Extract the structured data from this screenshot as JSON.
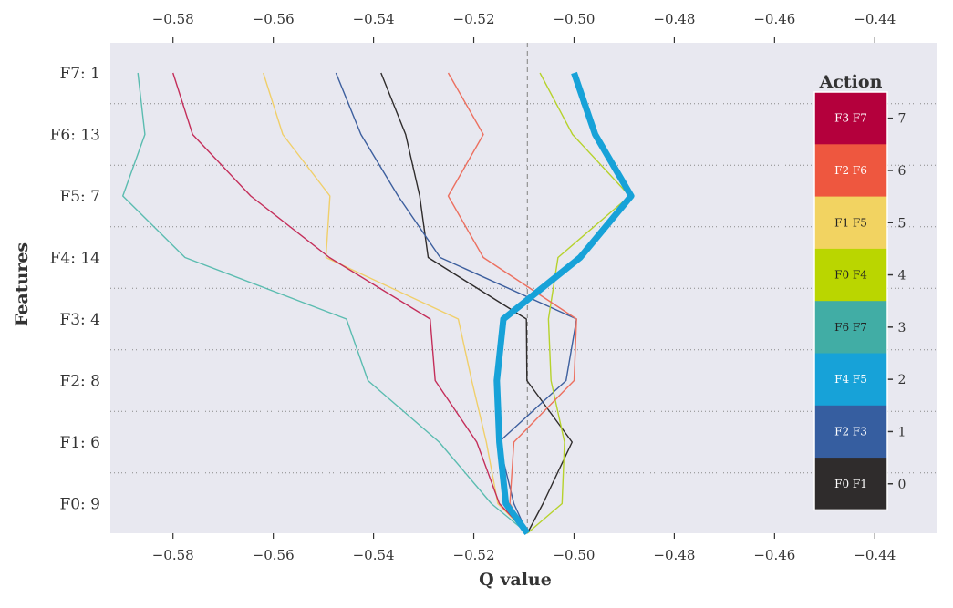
{
  "chart_data": {
    "type": "line",
    "xlabel": "Q value",
    "ylabel": "Features",
    "xlim": [
      -0.5925,
      -0.4275
    ],
    "x_ticks": [
      -0.58,
      -0.56,
      -0.54,
      -0.52,
      -0.5,
      -0.48,
      -0.46,
      -0.44
    ],
    "x_tick_labels": [
      "−0.58",
      "−0.56",
      "−0.54",
      "−0.52",
      "−0.50",
      "−0.48",
      "−0.46",
      "−0.44"
    ],
    "y_levels": [
      "base",
      "F0: 9",
      "F1: 6",
      "F2: 8",
      "F3: 4",
      "F4: 14",
      "F5: 7",
      "F6: 13",
      "F7: 1"
    ],
    "y_tick_labels": [
      "F0: 9",
      "F1: 6",
      "F2: 8",
      "F3: 4",
      "F4: 14",
      "F5: 7",
      "F6: 13",
      "F7: 1"
    ],
    "base_value": -0.5093,
    "series": [
      {
        "color": "#2f2c2c",
        "values": [
          -0.5093,
          -0.5062,
          -0.5004,
          -0.5094,
          -0.5095,
          -0.5291,
          -0.5308,
          -0.5336,
          -0.5385
        ],
        "highlight": false
      },
      {
        "color": "#3d5f9e",
        "values": [
          -0.5093,
          -0.512,
          -0.515,
          -0.5016,
          -0.4995,
          -0.5267,
          -0.5351,
          -0.5425,
          -0.5475
        ],
        "highlight": false
      },
      {
        "color": "#17a2d8",
        "values": [
          -0.5093,
          -0.5136,
          -0.5149,
          -0.5154,
          -0.5141,
          -0.4988,
          -0.4886,
          -0.4958,
          -0.5
        ],
        "highlight": true
      },
      {
        "color": "#5bbcb0",
        "values": [
          -0.5093,
          -0.5165,
          -0.5269,
          -0.5411,
          -0.5454,
          -0.5776,
          -0.59,
          -0.5856,
          -0.587
        ],
        "highlight": false
      },
      {
        "color": "#b6d22c",
        "values": [
          -0.5093,
          -0.5024,
          -0.5019,
          -0.5046,
          -0.5051,
          -0.5032,
          -0.4889,
          -0.5003,
          -0.5068
        ],
        "highlight": false
      },
      {
        "color": "#f0cf6a",
        "values": [
          -0.5093,
          -0.5152,
          -0.5175,
          -0.5204,
          -0.5231,
          -0.5495,
          -0.5487,
          -0.5581,
          -0.562
        ],
        "highlight": false
      },
      {
        "color": "#ec7060",
        "values": [
          -0.5093,
          -0.5128,
          -0.512,
          -0.5,
          -0.4995,
          -0.5181,
          -0.5251,
          -0.5181,
          -0.5251
        ],
        "highlight": false
      },
      {
        "color": "#c42e5a",
        "values": [
          -0.5093,
          -0.5149,
          -0.5194,
          -0.5277,
          -0.5287,
          -0.5488,
          -0.5645,
          -0.5761,
          -0.58
        ],
        "highlight": false
      }
    ],
    "legend": {
      "title": "Action",
      "position": "right",
      "segments": [
        {
          "label": "F3 F7",
          "tick": "7",
          "color": "#b4003c",
          "text_color": "#ffffff"
        },
        {
          "label": "F2 F6",
          "tick": "6",
          "color": "#ee573f",
          "text_color": "#ffffff"
        },
        {
          "label": "F1 F5",
          "tick": "5",
          "color": "#f2d361",
          "text_color": "#222222"
        },
        {
          "label": "F0 F4",
          "tick": "4",
          "color": "#bad600",
          "text_color": "#222222"
        },
        {
          "label": "F6 F7",
          "tick": "3",
          "color": "#41ada5",
          "text_color": "#222222"
        },
        {
          "label": "F4 F5",
          "tick": "2",
          "color": "#17a2d8",
          "text_color": "#ffffff"
        },
        {
          "label": "F2 F3",
          "tick": "1",
          "color": "#365ea0",
          "text_color": "#ffffff"
        },
        {
          "label": "F0 F1",
          "tick": "0",
          "color": "#2f2c2c",
          "text_color": "#ffffff"
        }
      ]
    },
    "grid": true,
    "colors": {
      "plot_bg": "#e8e8f0",
      "grid": "#888888",
      "base_line": "#999999"
    }
  }
}
